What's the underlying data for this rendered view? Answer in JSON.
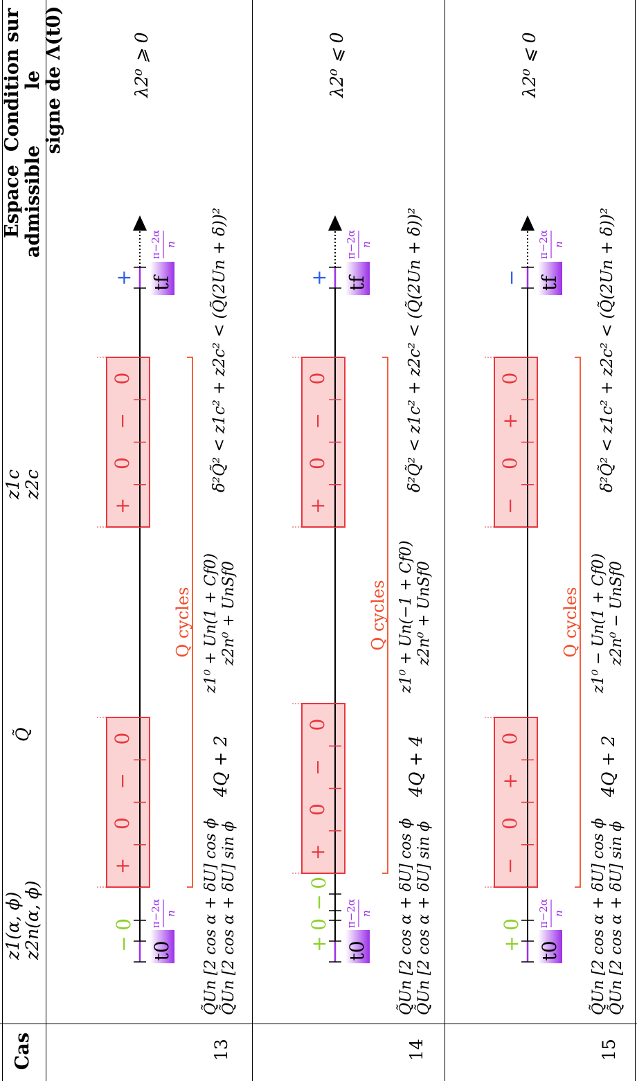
{
  "headers": {
    "cas": "Cas",
    "z": [
      "z1(α, ϕ)",
      "z2n(α, ϕ)"
    ],
    "qt": "Q̃",
    "zc": [
      "z1c",
      "z2c"
    ],
    "espace": [
      "Espace",
      "admissible"
    ],
    "condition": [
      "Condition sur le",
      "signe de  Λ(t0)"
    ]
  },
  "common": {
    "z1": "Q̃Un [2 cos α + δU] cos ϕ",
    "z2": "Q̃Un [2 cos α + δU] sin ϕ",
    "espace": "δ²Q̃² < z1c² + z2c² < (Q̃(2Un + δ))²",
    "cycles_label": "Q cycles",
    "t0": "t0",
    "tf": "tf",
    "frac": "π−2α",
    "frac_den": "n"
  },
  "rows": [
    {
      "cas": "13",
      "qt": "4Q + 2",
      "zc1": "z1⁰ + Un(1 + Cf0)",
      "zc2": "z2n⁰ + UnSf0",
      "cond": "λ2⁰ ⩾ 0",
      "green": [
        "−",
        "0"
      ],
      "cycle1": [
        "+",
        "0",
        "−",
        "0"
      ],
      "cycle2": [
        "+",
        "0",
        "−",
        "0"
      ],
      "end": "+"
    },
    {
      "cas": "14",
      "qt": "4Q + 4",
      "zc1": "z1⁰ + Un(−1 + Cf0)",
      "zc2": "z2n⁰ + UnSf0",
      "cond": "λ2⁰ ⩽ 0",
      "green": [
        "+",
        "0",
        "−",
        "0"
      ],
      "cycle1": [
        "+",
        "0",
        "−",
        "0"
      ],
      "cycle2": [
        "+",
        "0",
        "−",
        "0"
      ],
      "end": "+"
    },
    {
      "cas": "15",
      "qt": "4Q + 2",
      "zc1": "z1⁰ − Un(1 + Cf0)",
      "zc2": "z2n⁰ − UnSf0",
      "cond": "λ2⁰ ⩽ 0",
      "green": [
        "+",
        "0"
      ],
      "cycle1": [
        "−",
        "0",
        "+",
        "0"
      ],
      "cycle2": [
        "−",
        "0",
        "+",
        "0"
      ],
      "end": "−"
    }
  ],
  "colors": {
    "red": "#e8373f",
    "redfill": "#fbd3d3",
    "green": "#8cd12a",
    "blue": "#2b5ee8",
    "purple": "#9b30e8",
    "orange": "#f04c2a"
  }
}
